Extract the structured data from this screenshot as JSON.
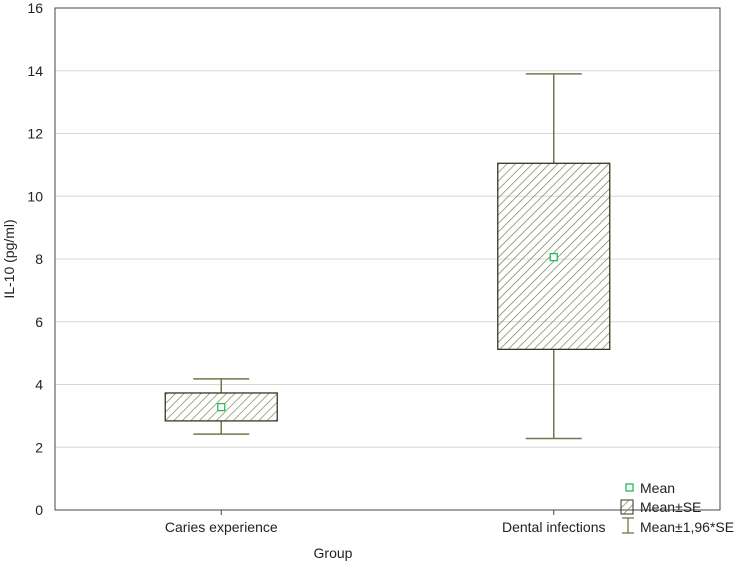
{
  "chart_data": {
    "type": "box",
    "title": "",
    "xlabel": "Group",
    "ylabel": "IL-10 (pg/ml)",
    "ylim": [
      0,
      16
    ],
    "yticks": [
      0,
      2,
      4,
      6,
      8,
      10,
      12,
      14,
      16
    ],
    "grid": true,
    "categories": [
      "Caries experience",
      "Dental infections"
    ],
    "series": [
      {
        "name": "Caries experience",
        "mean": 3.28,
        "se_low": 2.84,
        "se_high": 3.73,
        "ci_low": 2.42,
        "ci_high": 4.18
      },
      {
        "name": "Dental infections",
        "mean": 8.06,
        "se_low": 5.12,
        "se_high": 11.05,
        "ci_low": 2.28,
        "ci_high": 13.9
      }
    ],
    "legend": {
      "placement": "bottom-right",
      "items": [
        "Mean",
        "Mean±SE",
        "Mean±1,96*SE"
      ]
    },
    "colors": {
      "box": "#4a5a34",
      "whisker": "#6b7a4a",
      "mean": "#22bb55",
      "grid": "#d8d8d8"
    }
  }
}
